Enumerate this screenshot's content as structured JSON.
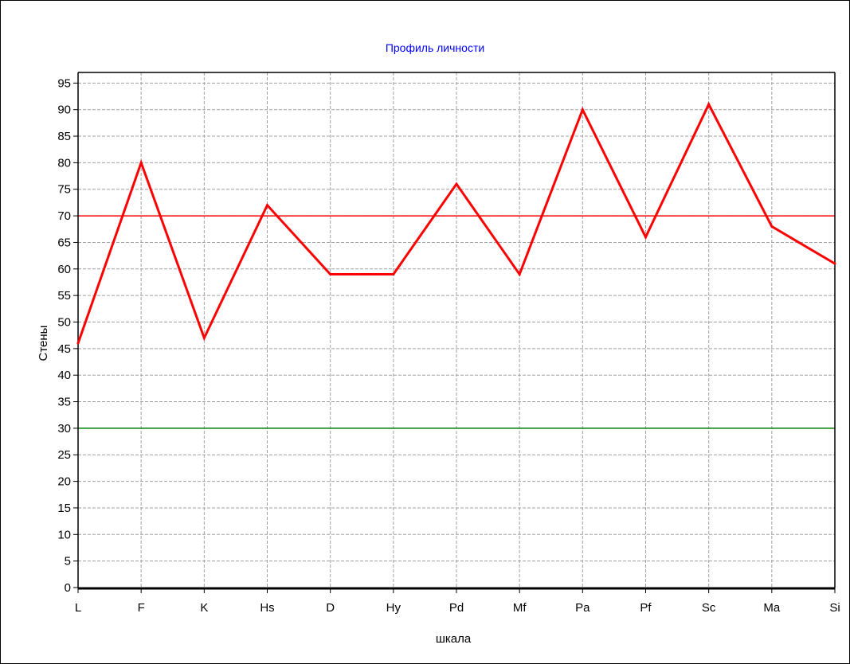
{
  "chart_data": {
    "type": "line",
    "title": "Профиль личности",
    "xlabel": "шкала",
    "ylabel": "Стены",
    "categories": [
      "L",
      "F",
      "K",
      "Hs",
      "D",
      "Hy",
      "Pd",
      "Mf",
      "Pa",
      "Pf",
      "Sc",
      "Ma",
      "Si"
    ],
    "series": [
      {
        "values": [
          46,
          80,
          47,
          72,
          59,
          59,
          76,
          59,
          90,
          66,
          91,
          68,
          61
        ],
        "color": "#ff0000"
      }
    ],
    "reference_lines": [
      {
        "value": 70,
        "color": "#ff0000"
      },
      {
        "value": 30,
        "color": "#008000"
      }
    ],
    "ylim": [
      0,
      97
    ],
    "yticks": [
      0,
      5,
      10,
      15,
      20,
      25,
      30,
      35,
      40,
      45,
      50,
      55,
      60,
      65,
      70,
      75,
      80,
      85,
      90,
      95
    ],
    "grid": true,
    "colors": {
      "title": "#0000ff",
      "grid": "#a0a0a0",
      "axis": "#000000"
    }
  }
}
